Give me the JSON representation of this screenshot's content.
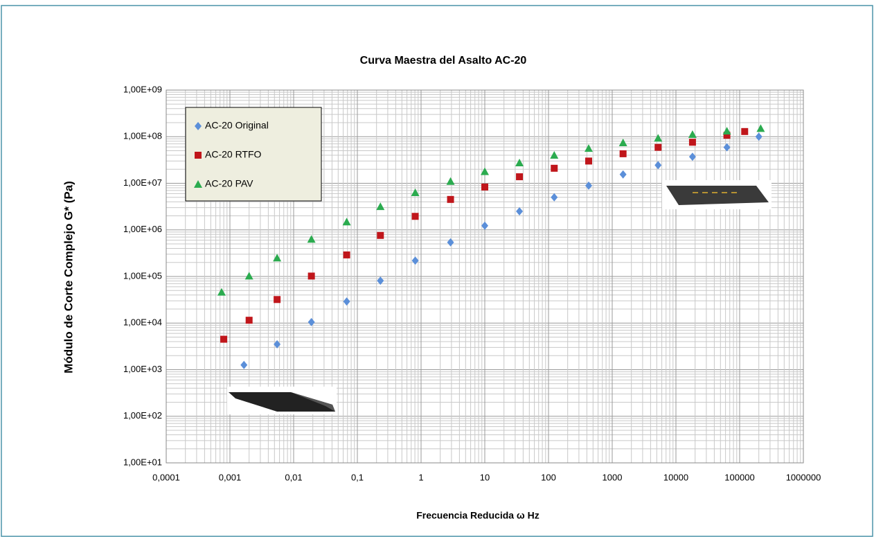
{
  "chart_data": {
    "type": "scatter",
    "title": "Curva  Maestra del Asalto AC-20",
    "x_label": "Frecuencia Reducida ω Hz",
    "y_label": "Módulo de Corte Complejo G* (Pa)",
    "xscale": "log",
    "yscale": "log",
    "grid": true,
    "legend": "upper left",
    "xlim": [
      0.0001,
      1000000
    ],
    "ylim": [
      10,
      1000000000
    ],
    "xticks": [
      {
        "value": 0.0001,
        "label": "0,0001"
      },
      {
        "value": 0.001,
        "label": "0,001"
      },
      {
        "value": 0.01,
        "label": "0,01"
      },
      {
        "value": 0.1,
        "label": "0,1"
      },
      1,
      10,
      100,
      1000,
      10000,
      100000,
      1000000
    ],
    "yticks": [
      {
        "value": 10,
        "label": "1,00E+01"
      },
      {
        "value": 100,
        "label": "1,00E+02"
      },
      {
        "value": 1000,
        "label": "1,00E+03"
      },
      {
        "value": 10000,
        "label": "1,00E+04"
      },
      {
        "value": 100000,
        "label": "1,00E+05"
      },
      {
        "value": 1000000,
        "label": "1,00E+06"
      },
      {
        "value": 10000000,
        "label": "1,00E+07"
      },
      {
        "value": 100000000,
        "label": "1,00E+08"
      },
      {
        "value": 1000000000,
        "label": "1,00E+09"
      }
    ],
    "series": [
      {
        "name": "AC-20 Original",
        "color": "#5b8fd9",
        "marker": "diamond",
        "x": [
          0.00166,
          0.0055,
          0.019,
          0.068,
          0.23,
          0.81,
          2.9,
          10,
          35,
          123,
          427,
          1480,
          5250,
          18200,
          63100,
          200000
        ],
        "values": [
          1260,
          3500,
          10500,
          29000,
          81000,
          219000,
          540000,
          1230000,
          2500000,
          5000000,
          8900000,
          15500000,
          24500000,
          37000000,
          59000000,
          100000000
        ]
      },
      {
        "name": "AC-20 RTFO",
        "color": "#c0161b",
        "marker": "square",
        "x": [
          0.0008,
          0.002,
          0.0055,
          0.019,
          0.068,
          0.23,
          0.81,
          2.9,
          10,
          35,
          123,
          427,
          1480,
          5250,
          18200,
          63100,
          120000
        ],
        "values": [
          4500,
          11500,
          32000,
          102000,
          290000,
          760000,
          1950000,
          4500000,
          8300000,
          13800000,
          21000000,
          30000000,
          43000000,
          59000000,
          76000000,
          107000000,
          129000000
        ]
      },
      {
        "name": "AC-20 PAV",
        "color": "#2bab4f",
        "marker": "triangle",
        "x": [
          0.00074,
          0.002,
          0.0055,
          0.019,
          0.068,
          0.23,
          0.81,
          2.9,
          10,
          35,
          123,
          427,
          1480,
          5250,
          18200,
          63100,
          214000
        ],
        "values": [
          46000,
          102000,
          250000,
          630000,
          1480000,
          3160000,
          6300000,
          11000000,
          17800000,
          27500000,
          40000000,
          56000000,
          74000000,
          93000000,
          112000000,
          132000000,
          150000000
        ]
      }
    ]
  }
}
